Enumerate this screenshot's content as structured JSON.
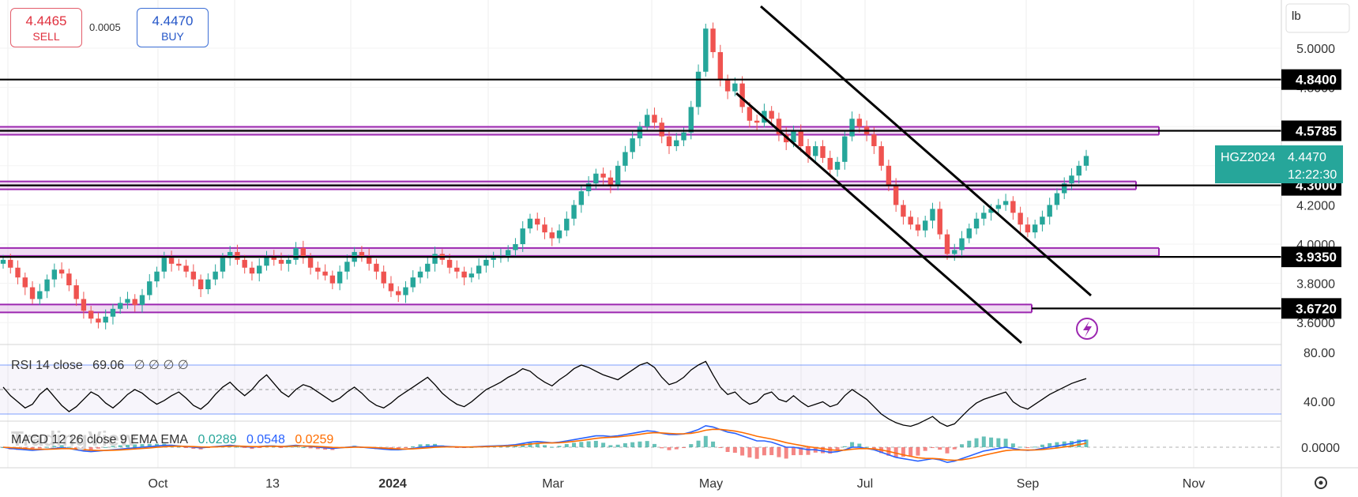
{
  "trade": {
    "sell_price": "4.4465",
    "sell_label": "SELL",
    "spread": "0.0005",
    "buy_price": "4.4470",
    "buy_label": "BUY"
  },
  "unit_label": "lb",
  "symbol": {
    "ticker": "HGZ2024",
    "last_price": "4.4470",
    "countdown": "12:22:30",
    "color": "#26a69a"
  },
  "watermark": "TradingView",
  "rsi": {
    "label": "RSI 14 close",
    "value": "69.06",
    "extra": "∅ ∅ ∅ ∅",
    "axis_labels": [
      "80.00",
      "40.00"
    ]
  },
  "macd": {
    "label": "MACD 12 26 close 9 EMA EMA",
    "v1": "0.0289",
    "v2": "0.0548",
    "v3": "0.0259",
    "axis_label": "0.0000",
    "colors": {
      "macd": "#2962ff",
      "signal": "#ff6d00",
      "hist_up": "#26a69a",
      "hist_down": "#ef5350"
    }
  },
  "chart_data": {
    "type": "candlestick",
    "y_ticks": [
      5.0,
      4.8,
      4.2,
      4.0,
      3.8,
      3.6
    ],
    "x_labels": [
      "Oct",
      "13",
      "2024",
      "Mar",
      "May",
      "Jul",
      "Sep",
      "Nov"
    ],
    "price_levels": [
      {
        "value": "4.8400",
        "price": 4.84
      },
      {
        "value": "4.5785",
        "price": 4.5785
      },
      {
        "value": "4.3000",
        "price": 4.3
      },
      {
        "value": "3.9350",
        "price": 3.935
      },
      {
        "value": "3.6720",
        "price": 3.672
      }
    ],
    "purple_zones": [
      4.5785,
      4.3,
      3.96,
      3.672
    ],
    "closes": [
      3.92,
      3.88,
      3.83,
      3.78,
      3.72,
      3.76,
      3.82,
      3.87,
      3.85,
      3.79,
      3.72,
      3.66,
      3.62,
      3.6,
      3.63,
      3.67,
      3.7,
      3.72,
      3.69,
      3.74,
      3.81,
      3.86,
      3.93,
      3.9,
      3.89,
      3.86,
      3.82,
      3.77,
      3.82,
      3.86,
      3.93,
      3.96,
      3.92,
      3.88,
      3.85,
      3.89,
      3.94,
      3.92,
      3.9,
      3.92,
      3.98,
      3.93,
      3.88,
      3.86,
      3.84,
      3.8,
      3.86,
      3.91,
      3.96,
      3.94,
      3.9,
      3.86,
      3.8,
      3.76,
      3.74,
      3.78,
      3.83,
      3.86,
      3.9,
      3.95,
      3.92,
      3.88,
      3.86,
      3.83,
      3.85,
      3.89,
      3.92,
      3.93,
      3.94,
      3.97,
      4.0,
      4.08,
      4.13,
      4.1,
      4.06,
      4.03,
      4.07,
      4.13,
      4.2,
      4.27,
      4.31,
      4.36,
      4.34,
      4.3,
      4.4,
      4.47,
      4.54,
      4.6,
      4.66,
      4.62,
      4.55,
      4.5,
      4.53,
      4.57,
      4.7,
      4.88,
      5.1,
      4.98,
      4.84,
      4.78,
      4.82,
      4.7,
      4.63,
      4.62,
      4.68,
      4.64,
      4.56,
      4.52,
      4.58,
      4.5,
      4.45,
      4.5,
      4.44,
      4.38,
      4.42,
      4.55,
      4.64,
      4.6,
      4.56,
      4.5,
      4.4,
      4.3,
      4.2,
      4.14,
      4.1,
      4.07,
      4.12,
      4.18,
      4.05,
      3.95,
      3.97,
      4.03,
      4.08,
      4.13,
      4.16,
      4.18,
      4.2,
      4.22,
      4.16,
      4.1,
      4.06,
      4.1,
      4.14,
      4.2,
      4.26,
      4.31,
      4.35,
      4.4,
      4.45
    ],
    "rsi_values": [
      62,
      55,
      50,
      45,
      48,
      56,
      61,
      54,
      47,
      42,
      46,
      52,
      58,
      55,
      49,
      45,
      50,
      56,
      60,
      57,
      52,
      48,
      51,
      55,
      58,
      53,
      47,
      44,
      49,
      56,
      62,
      66,
      60,
      55,
      60,
      67,
      72,
      65,
      58,
      54,
      60,
      64,
      62,
      58,
      54,
      50,
      53,
      58,
      62,
      57,
      51,
      47,
      45,
      49,
      54,
      58,
      62,
      66,
      70,
      64,
      57,
      52,
      48,
      46,
      50,
      55,
      60,
      63,
      66,
      70,
      73,
      77,
      75,
      70,
      66,
      63,
      68,
      72,
      77,
      80,
      78,
      75,
      72,
      70,
      68,
      72,
      76,
      80,
      82,
      78,
      70,
      64,
      66,
      70,
      76,
      80,
      83,
      72,
      62,
      56,
      58,
      52,
      48,
      50,
      56,
      58,
      52,
      50,
      55,
      50,
      46,
      48,
      50,
      46,
      48,
      55,
      60,
      56,
      52,
      46,
      40,
      36,
      33,
      31,
      30,
      32,
      35,
      38,
      33,
      30,
      32,
      38,
      44,
      49,
      52,
      54,
      56,
      58,
      50,
      46,
      44,
      48,
      52,
      56,
      59,
      62,
      65,
      67,
      69
    ],
    "macd_line": [
      0.0,
      -0.01,
      -0.015,
      -0.02,
      -0.025,
      -0.02,
      -0.015,
      -0.01,
      -0.005,
      -0.01,
      -0.02,
      -0.03,
      -0.035,
      -0.03,
      -0.025,
      -0.02,
      -0.015,
      -0.01,
      -0.005,
      0.0,
      0.005,
      0.01,
      0.015,
      0.015,
      0.01,
      0.005,
      0.0,
      -0.005,
      0.0,
      0.005,
      0.01,
      0.015,
      0.01,
      0.005,
      0.0,
      0.005,
      0.01,
      0.01,
      0.005,
      0.01,
      0.015,
      0.01,
      0.005,
      0.0,
      -0.005,
      -0.01,
      -0.005,
      0.0,
      0.005,
      0.0,
      -0.005,
      -0.01,
      -0.015,
      -0.02,
      -0.02,
      -0.015,
      -0.01,
      0.0,
      0.005,
      0.01,
      0.008,
      0.005,
      0.002,
      0.0,
      0.002,
      0.005,
      0.008,
      0.01,
      0.012,
      0.015,
      0.02,
      0.03,
      0.04,
      0.045,
      0.04,
      0.035,
      0.04,
      0.05,
      0.06,
      0.07,
      0.08,
      0.09,
      0.09,
      0.085,
      0.09,
      0.1,
      0.11,
      0.12,
      0.13,
      0.125,
      0.11,
      0.1,
      0.1,
      0.105,
      0.12,
      0.14,
      0.17,
      0.16,
      0.14,
      0.12,
      0.11,
      0.09,
      0.07,
      0.05,
      0.05,
      0.04,
      0.02,
      0.0,
      0.0,
      -0.01,
      -0.02,
      -0.02,
      -0.03,
      -0.04,
      -0.035,
      -0.02,
      0.0,
      0.0,
      -0.01,
      -0.02,
      -0.04,
      -0.06,
      -0.08,
      -0.09,
      -0.1,
      -0.11,
      -0.1,
      -0.09,
      -0.1,
      -0.12,
      -0.11,
      -0.09,
      -0.07,
      -0.05,
      -0.03,
      -0.02,
      -0.01,
      0.0,
      -0.01,
      -0.02,
      -0.025,
      -0.02,
      -0.01,
      0.0,
      0.01,
      0.02,
      0.03,
      0.045,
      0.055
    ]
  }
}
